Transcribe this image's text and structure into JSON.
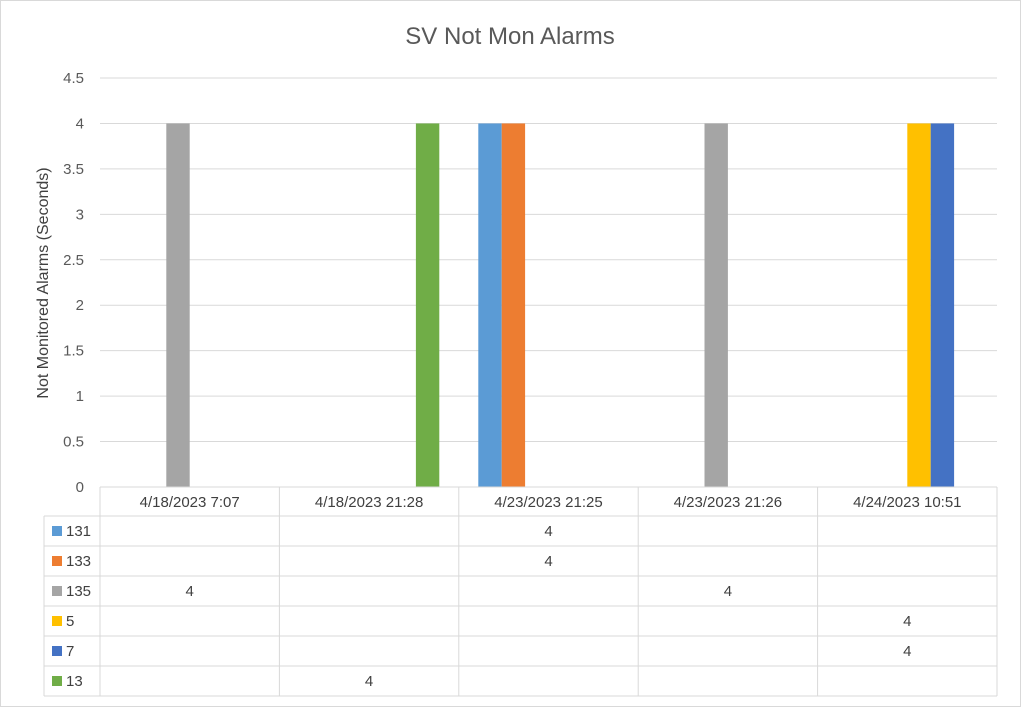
{
  "chart_data": {
    "type": "bar",
    "title": "SV Not Mon Alarms",
    "xlabel": "",
    "ylabel": "Not Monitored Alarms (Seconds)",
    "ylim": [
      0,
      4.5
    ],
    "yticks": [
      "0",
      "0.5",
      "1",
      "1.5",
      "2",
      "2.5",
      "3",
      "3.5",
      "4",
      "4.5"
    ],
    "grid": true,
    "legend": "data table",
    "categories": [
      "4/18/2023 7:07",
      "4/18/2023 21:28",
      "4/23/2023 21:25",
      "4/23/2023 21:26",
      "4/24/2023 10:51"
    ],
    "series": [
      {
        "name": "131",
        "color": "#5b9bd5",
        "values": [
          null,
          null,
          4,
          null,
          null
        ]
      },
      {
        "name": "133",
        "color": "#ed7d31",
        "values": [
          null,
          null,
          4,
          null,
          null
        ]
      },
      {
        "name": "135",
        "color": "#a5a5a5",
        "values": [
          4,
          null,
          null,
          4,
          null
        ]
      },
      {
        "name": "5",
        "color": "#ffc000",
        "values": [
          null,
          null,
          null,
          null,
          4
        ]
      },
      {
        "name": "7",
        "color": "#4472c4",
        "values": [
          null,
          null,
          null,
          null,
          4
        ]
      },
      {
        "name": "13",
        "color": "#70ad47",
        "values": [
          null,
          4,
          null,
          null,
          null
        ]
      }
    ]
  }
}
